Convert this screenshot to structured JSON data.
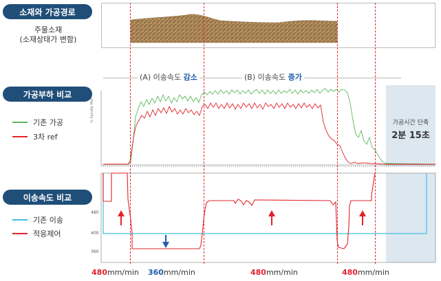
{
  "sections": {
    "material": {
      "title": "소재와 가공경로",
      "subtitle_line1": "주물소재",
      "subtitle_line2": "(소재상태가 변함)"
    },
    "load": {
      "title": "가공부하 비교",
      "legend": [
        {
          "label": "기존 가공",
          "color": "#5cb85c"
        },
        {
          "label": "3차 ref",
          "color": "#e0242a"
        }
      ]
    },
    "feed": {
      "title": "이송속도 비교",
      "legend": [
        {
          "label": "기존 이송",
          "color": "#3fc0e0"
        },
        {
          "label": "적응제어",
          "color": "#e0242a"
        }
      ]
    }
  },
  "phases": [
    {
      "prefix": "(A) 이송속도 ",
      "emphasis": "감소",
      "emphasis_color": "#1f5da8"
    },
    {
      "prefix": "(B) 이송속도 ",
      "emphasis": "증가",
      "emphasis_color": "#e0242a"
    }
  ],
  "time_saving": {
    "caption": "가공시간 단축",
    "value": "2분 15초"
  },
  "load_chart": {
    "y_axis_label": "% Spindle Mot"
  },
  "feed_chart": {
    "y_ticks": [
      "480",
      "400",
      "360"
    ]
  },
  "speeds": [
    {
      "value": "480",
      "unit": "mm/min",
      "color": "#e0242a"
    },
    {
      "value": "360",
      "unit": "mm/min",
      "color": "#1f5da8"
    },
    {
      "value": "480",
      "unit": "mm/min",
      "color": "#e0242a"
    },
    {
      "value": "480",
      "unit": "mm/min",
      "color": "#e0242a"
    }
  ],
  "colors": {
    "badge": "#1f4e79",
    "guide": "#e0242a",
    "material": "#b08a5a",
    "shade": "#dde7f0"
  }
}
